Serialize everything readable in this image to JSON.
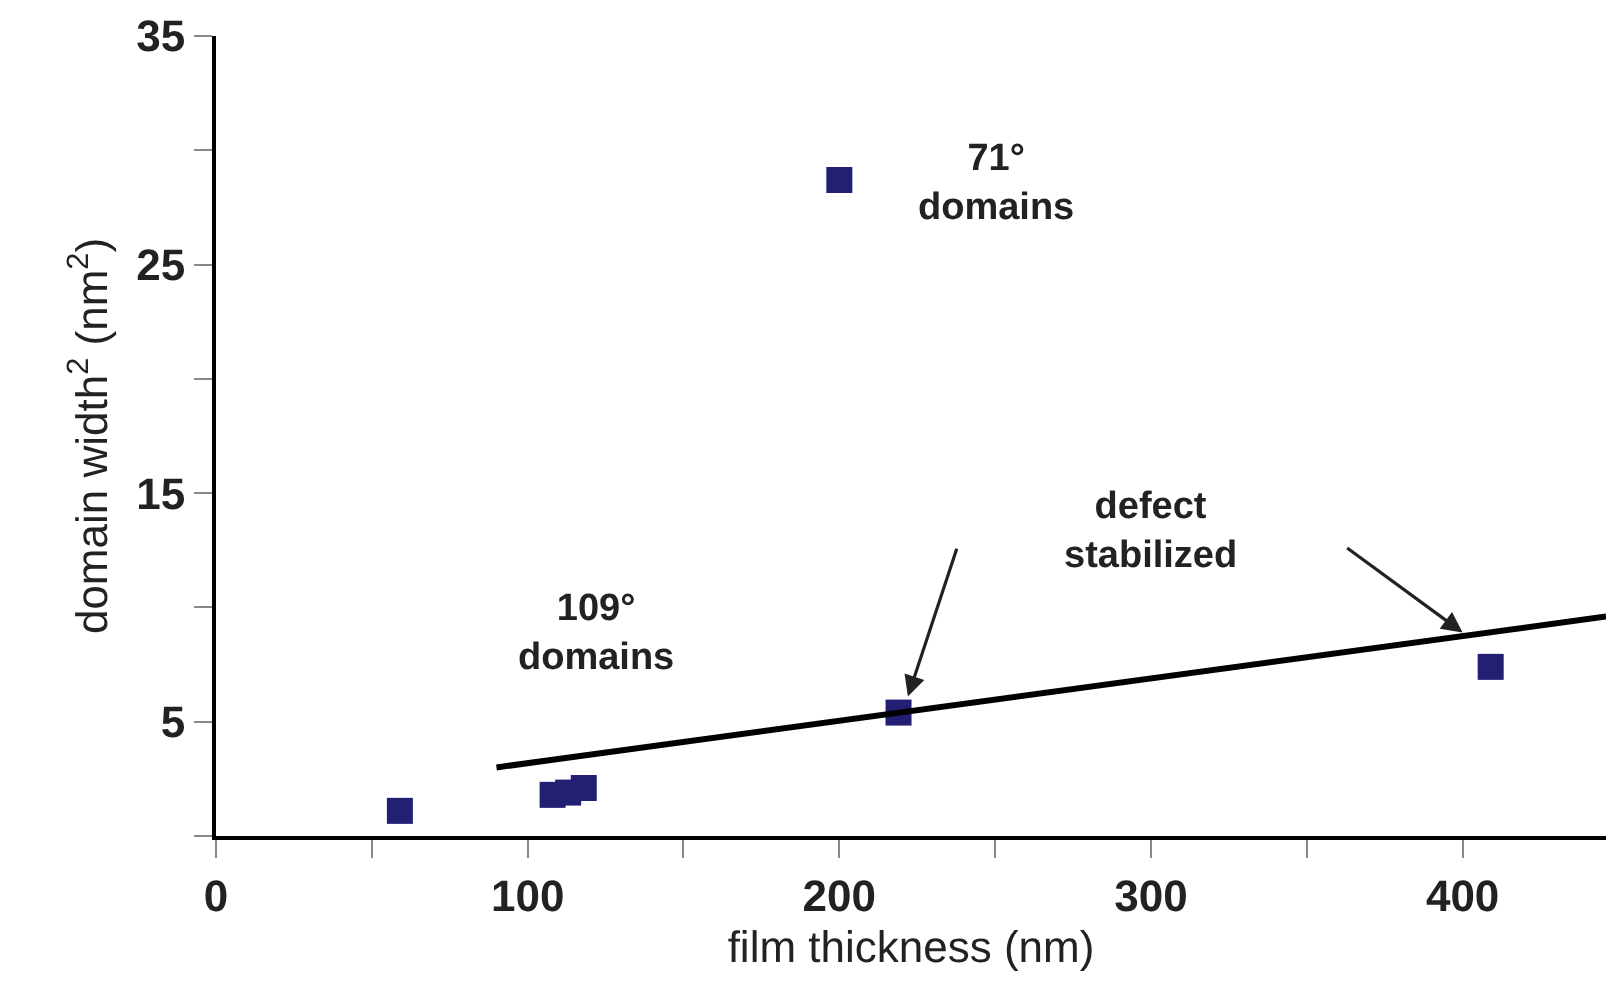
{
  "chart_data": {
    "type": "scatter",
    "xlabel": "film thickness (nm)",
    "ylabel": "domain width$^{2}$ (nm$^{2}$)",
    "marker": "square",
    "xlim": [
      0,
      446
    ],
    "ylim": [
      0,
      35
    ],
    "xticks": [
      0,
      {
        "value": 50,
        "label": null
      },
      100,
      {
        "value": 150,
        "label": null
      },
      200,
      {
        "value": 250,
        "label": null
      },
      300,
      {
        "value": 350,
        "label": null
      },
      400
    ],
    "yticks": [
      {
        "value": 0,
        "label": null
      },
      5,
      {
        "value": 10,
        "label": null
      },
      15,
      {
        "value": 20,
        "label": null
      },
      25,
      {
        "value": 30,
        "label": null
      },
      35
    ],
    "series": [
      {
        "color": "#231f73",
        "x": [
          59,
          108,
          113,
          118,
          200,
          219,
          409
        ],
        "values": [
          1.1,
          1.8,
          1.9,
          2.1,
          28.7,
          5.4,
          7.4
        ]
      },
      {
        "type": "line",
        "color": "#000000",
        "marker": "none",
        "x": [
          90,
          446
        ],
        "values": [
          3.0,
          9.6
        ]
      }
    ],
    "annotations": [
      "71°\ndomains",
      "109°\ndomains",
      "defect\nstabilized"
    ]
  }
}
